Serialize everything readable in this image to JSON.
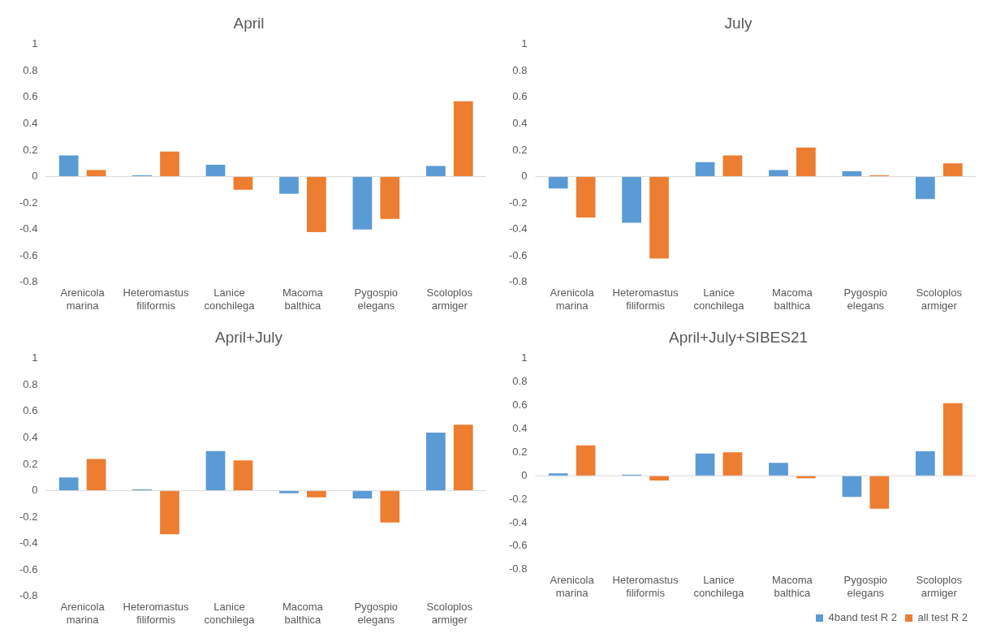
{
  "chart_data": [
    {
      "type": "bar",
      "title": "April",
      "ref_lines": [
        {
          "axis": "y",
          "value": 0,
          "color": "#d9d9d9"
        }
      ],
      "categories": [
        "Arenicola marina",
        "Heteromastus filiformis",
        "Lanice conchilega",
        "Macoma balthica",
        "Pygospio elegans",
        "Scoloplos armiger"
      ],
      "ylim": [
        -0.8,
        1
      ],
      "yticks": [
        -0.8,
        -0.6,
        -0.4,
        -0.2,
        0,
        0.2,
        0.4,
        0.6,
        0.8,
        1
      ],
      "grid": false,
      "legend": false,
      "series": [
        {
          "color": "#5b9bd5",
          "values": [
            0.16,
            0.01,
            0.09,
            -0.13,
            -0.4,
            0.08
          ]
        },
        {
          "color": "#ed7d31",
          "values": [
            0.05,
            0.19,
            -0.1,
            -0.42,
            -0.32,
            0.57
          ]
        }
      ]
    },
    {
      "type": "bar",
      "title": "July",
      "ref_lines": [
        {
          "axis": "y",
          "value": 0,
          "color": "#d9d9d9"
        }
      ],
      "categories": [
        "Arenicola marina",
        "Heteromastus filiformis",
        "Lanice conchilega",
        "Macoma balthica",
        "Pygospio elegans",
        "Scoloplos armiger"
      ],
      "ylim": [
        -0.8,
        1
      ],
      "yticks": [
        -0.8,
        -0.6,
        -0.4,
        -0.2,
        0,
        0.2,
        0.4,
        0.6,
        0.8,
        1
      ],
      "grid": false,
      "legend": false,
      "series": [
        {
          "color": "#5b9bd5",
          "values": [
            -0.09,
            -0.35,
            0.11,
            0.05,
            0.04,
            -0.17
          ]
        },
        {
          "color": "#ed7d31",
          "values": [
            -0.31,
            -0.62,
            0.16,
            0.22,
            0.01,
            0.1
          ]
        }
      ]
    },
    {
      "type": "bar",
      "title": "April+July",
      "ref_lines": [
        {
          "axis": "y",
          "value": 0,
          "color": "#d9d9d9"
        }
      ],
      "categories": [
        "Arenicola marina",
        "Heteromastus filiformis",
        "Lanice conchilega",
        "Macoma balthica",
        "Pygospio elegans",
        "Scoloplos armiger"
      ],
      "ylim": [
        -0.8,
        1
      ],
      "yticks": [
        -0.8,
        -0.6,
        -0.4,
        -0.2,
        0,
        0.2,
        0.4,
        0.6,
        0.8,
        1
      ],
      "grid": false,
      "legend": false,
      "series": [
        {
          "color": "#5b9bd5",
          "values": [
            0.1,
            0.01,
            0.3,
            -0.02,
            -0.06,
            0.44
          ]
        },
        {
          "color": "#ed7d31",
          "values": [
            0.24,
            -0.33,
            0.23,
            -0.05,
            -0.24,
            0.5
          ]
        }
      ]
    },
    {
      "type": "bar",
      "title": "April+July+SIBES21",
      "ref_lines": [
        {
          "axis": "y",
          "value": 0,
          "color": "#d9d9d9"
        }
      ],
      "categories": [
        "Arenicola marina",
        "Heteromastus filiformis",
        "Lanice conchilega",
        "Macoma balthica",
        "Pygospio elegans",
        "Scoloplos armiger"
      ],
      "ylim": [
        -0.8,
        1
      ],
      "yticks": [
        -0.8,
        -0.6,
        -0.4,
        -0.2,
        0,
        0.2,
        0.4,
        0.6,
        0.8,
        1
      ],
      "grid": false,
      "legend": "bottom right",
      "series": [
        {
          "name": "4band test R 2",
          "color": "#5b9bd5",
          "values": [
            0.02,
            0.01,
            0.19,
            0.11,
            -0.18,
            0.21
          ]
        },
        {
          "name": "all test R 2",
          "color": "#ed7d31",
          "values": [
            0.26,
            -0.04,
            0.2,
            -0.02,
            -0.28,
            0.62
          ]
        }
      ]
    }
  ]
}
